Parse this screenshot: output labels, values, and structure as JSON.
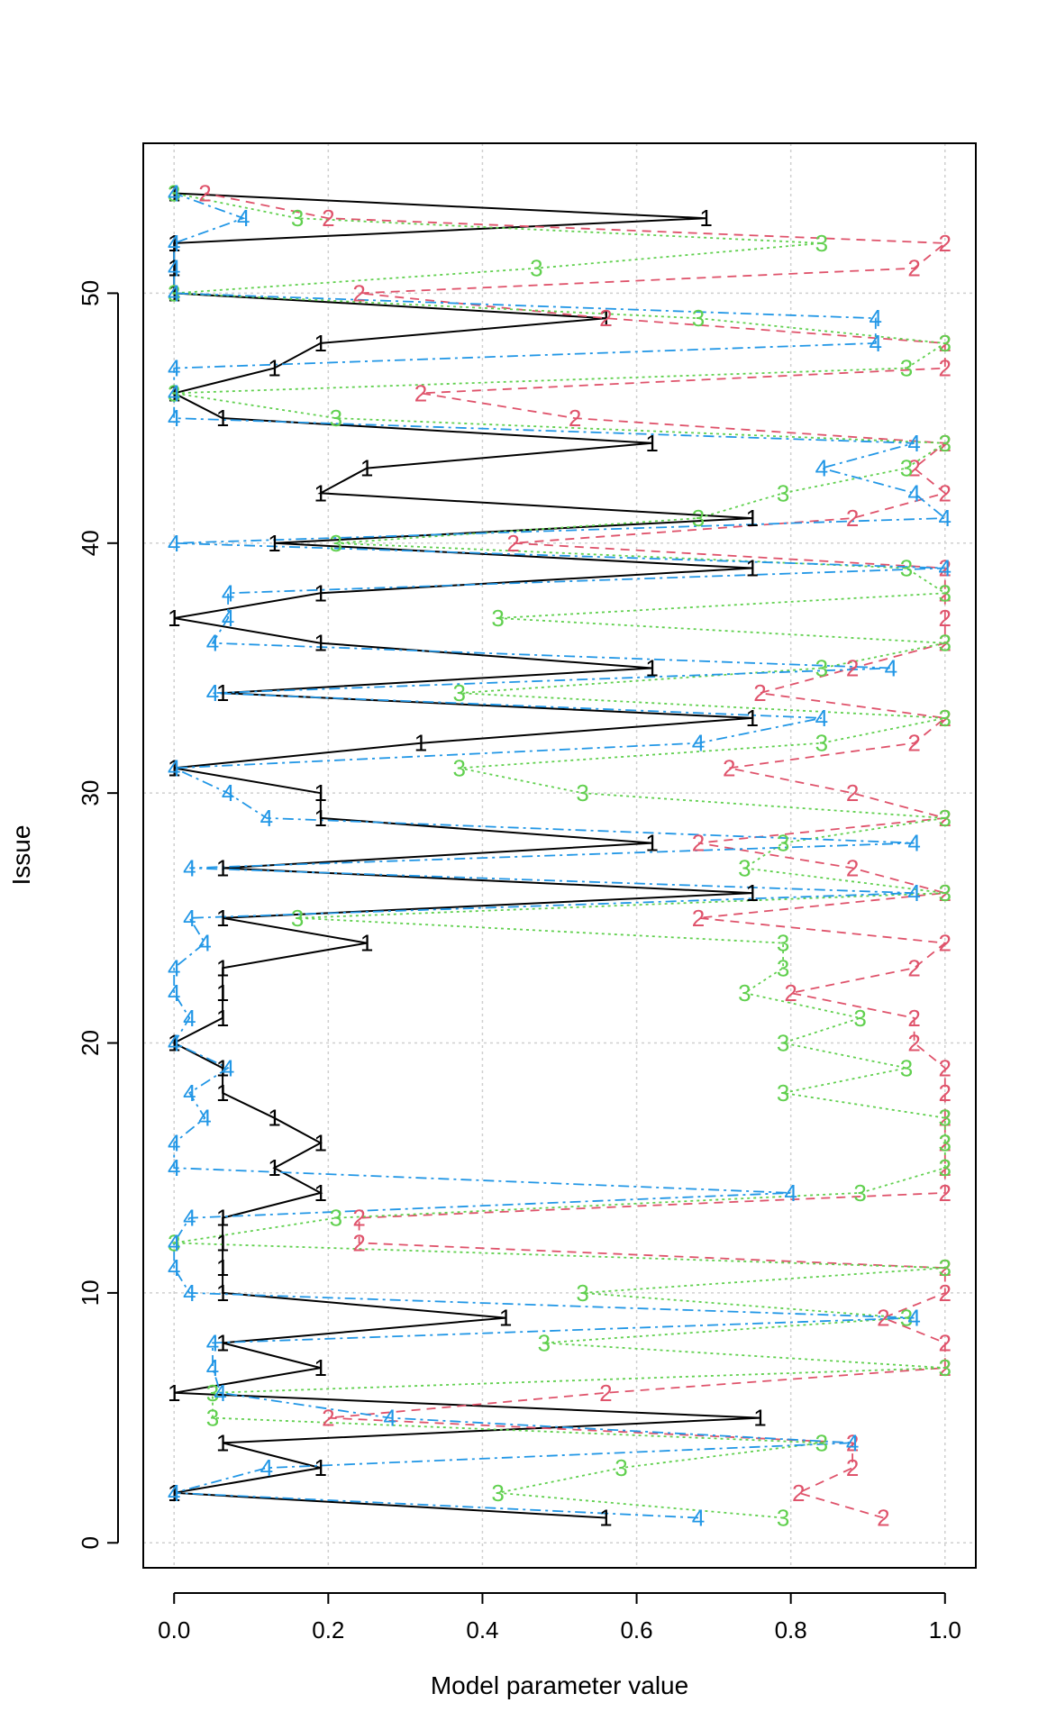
{
  "chart_data": {
    "type": "line",
    "xlabel": "Model parameter value",
    "ylabel": "Issue",
    "xlim": [
      -0.04,
      1.04
    ],
    "ylim": [
      -1,
      56
    ],
    "xticks": [
      0.0,
      0.2,
      0.4,
      0.6,
      0.8,
      1.0
    ],
    "xtick_labels": [
      "0.0",
      "0.2",
      "0.4",
      "0.6",
      "0.8",
      "1.0"
    ],
    "yticks": [
      0,
      10,
      20,
      30,
      40,
      50
    ],
    "ytick_labels": [
      "0",
      "10",
      "20",
      "30",
      "40",
      "50"
    ],
    "grid": true,
    "y": [
      1,
      2,
      3,
      4,
      5,
      6,
      7,
      8,
      9,
      10,
      11,
      12,
      13,
      14,
      15,
      16,
      17,
      18,
      19,
      20,
      21,
      22,
      23,
      24,
      25,
      26,
      27,
      28,
      29,
      30,
      31,
      32,
      33,
      34,
      35,
      36,
      37,
      38,
      39,
      40,
      41,
      42,
      43,
      44,
      45,
      46,
      47,
      48,
      49,
      50,
      51,
      52,
      53,
      54
    ],
    "series": [
      {
        "marker": "1",
        "color": "#000000",
        "dash": "none",
        "values": [
          0.56,
          0,
          0.19,
          0.063,
          0.76,
          0,
          0.19,
          0.063,
          0.43,
          0.063,
          0.063,
          0.063,
          0.063,
          0.19,
          0.13,
          0.19,
          0.13,
          0.063,
          0.063,
          0,
          0.063,
          0.063,
          0.063,
          0.25,
          0.063,
          0.75,
          0.063,
          0.62,
          0.19,
          0.19,
          0,
          0.32,
          0.75,
          0.063,
          0.62,
          0.19,
          0,
          0.19,
          0.75,
          0.13,
          0.75,
          0.19,
          0.25,
          0.62,
          0.063,
          0,
          0.13,
          0.19,
          0.56,
          0,
          0,
          0,
          0.69,
          0
        ]
      },
      {
        "marker": "2",
        "color": "#df536b",
        "dash": "10,7",
        "values": [
          0.92,
          0.81,
          0.88,
          0.88,
          0.2,
          0.56,
          1.0,
          1.0,
          0.92,
          1.0,
          1.0,
          0.24,
          0.24,
          1.0,
          1.0,
          1.0,
          1.0,
          1.0,
          1.0,
          0.96,
          0.96,
          0.8,
          0.96,
          1.0,
          0.68,
          1.0,
          0.88,
          0.68,
          1.0,
          0.88,
          0.72,
          0.96,
          1.0,
          0.76,
          0.88,
          1.0,
          1.0,
          1.0,
          1.0,
          0.44,
          0.88,
          1.0,
          0.96,
          1.0,
          0.52,
          0.32,
          1.0,
          1.0,
          0.56,
          0.24,
          0.96,
          1.0,
          0.2,
          0.04
        ]
      },
      {
        "marker": "3",
        "color": "#61d04f",
        "dash": "3,4",
        "values": [
          0.79,
          0.42,
          0.58,
          0.84,
          0.05,
          0.05,
          1.0,
          0.48,
          0.95,
          0.53,
          1.0,
          0,
          0.21,
          0.89,
          1.0,
          1.0,
          1.0,
          0.79,
          0.95,
          0.79,
          0.89,
          0.74,
          0.79,
          0.79,
          0.16,
          1.0,
          0.74,
          0.79,
          1.0,
          0.53,
          0.37,
          0.84,
          1.0,
          0.37,
          0.84,
          1.0,
          0.42,
          1.0,
          0.95,
          0.21,
          0.68,
          0.79,
          0.95,
          1.0,
          0.21,
          0,
          0.95,
          1.0,
          0.68,
          0,
          0.47,
          0.84,
          0.16,
          0
        ]
      },
      {
        "marker": "4",
        "color": "#2297e6",
        "dash": "12,5,3,5",
        "values": [
          0.68,
          0,
          0.12,
          0.88,
          0.28,
          0.06,
          0.05,
          0.05,
          0.96,
          0.02,
          0,
          0,
          0.02,
          0.8,
          0,
          0,
          0.04,
          0.02,
          0.07,
          0,
          0.02,
          0,
          0,
          0.04,
          0.02,
          0.96,
          0.02,
          0.96,
          0.12,
          0.07,
          0,
          0.68,
          0.84,
          0.05,
          0.93,
          0.05,
          0.07,
          0.07,
          1.0,
          0,
          1.0,
          0.96,
          0.84,
          0.96,
          0,
          0,
          0,
          0.91,
          0.91,
          0,
          0,
          0,
          0.09,
          0
        ]
      }
    ]
  }
}
